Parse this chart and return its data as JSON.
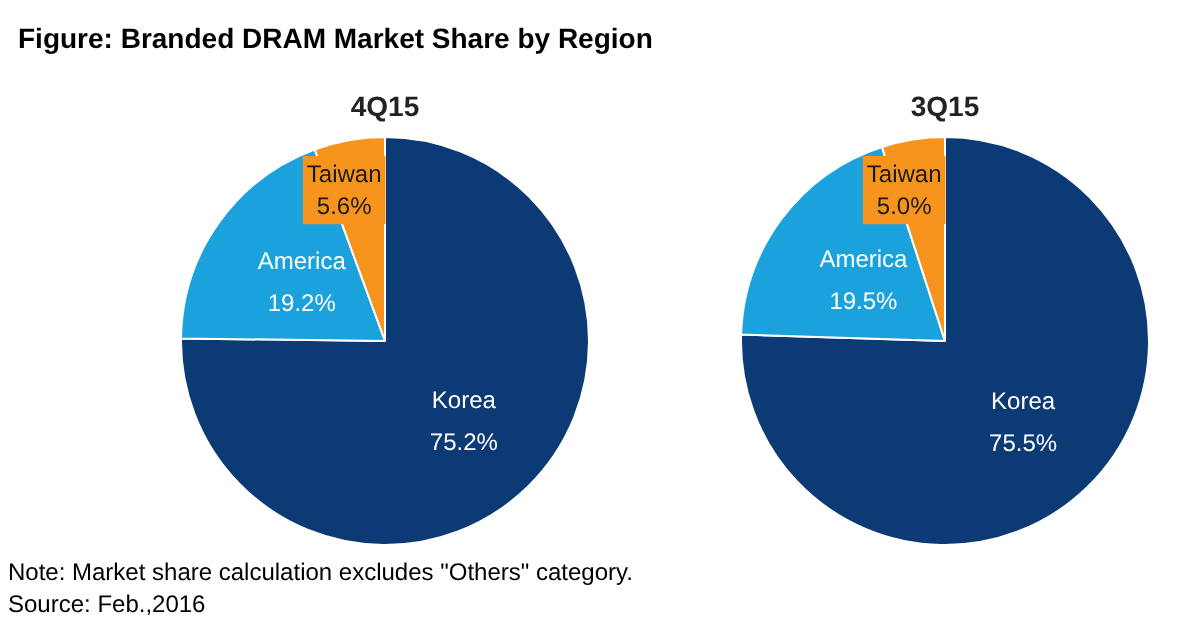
{
  "chart_data": [
    {
      "type": "pie",
      "title": "4Q15",
      "categories": [
        "Korea",
        "America",
        "Taiwan"
      ],
      "values": [
        75.2,
        19.2,
        5.6
      ],
      "value_labels": [
        "75.2%",
        "19.2%",
        "5.6%"
      ],
      "colors": [
        "#0b3a74",
        "#1ba1dc",
        "#f7941d"
      ],
      "annotations": [
        "Figure: Branded DRAM Market Share by Region"
      ]
    },
    {
      "type": "pie",
      "title": "3Q15",
      "categories": [
        "Korea",
        "America",
        "Taiwan"
      ],
      "values": [
        75.5,
        19.5,
        5.0
      ],
      "value_labels": [
        "75.5%",
        "19.5%",
        "5.0%"
      ],
      "colors": [
        "#0b3a74",
        "#1ba1dc",
        "#f7941d"
      ],
      "annotations": [
        "Note: Market share calculation excludes \"Others\" category.",
        "Source: Feb.,2016"
      ]
    }
  ]
}
